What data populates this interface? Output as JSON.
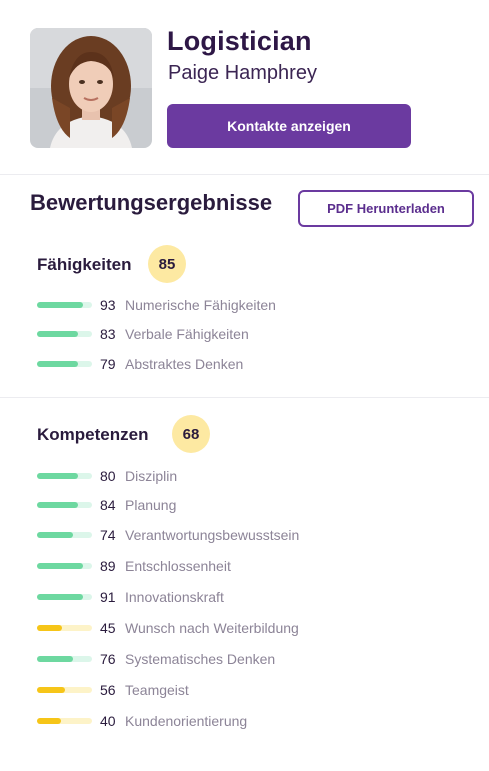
{
  "profile": {
    "job_title": "Logistician",
    "name": "Paige Hamphrey",
    "contacts_button": "Kontakte anzeigen"
  },
  "results": {
    "title": "Bewertungsergebnisse",
    "pdf_button": "PDF Herunterladen"
  },
  "colors": {
    "accent": "#6b3aa0",
    "badge": "#fde9a2",
    "high": "#6dd8a0",
    "low": "#f6c518"
  },
  "groups": [
    {
      "title": "Fähigkeiten",
      "score": "85",
      "items": [
        {
          "score": "93",
          "label": "Numerische Fähigkeiten",
          "level": "high"
        },
        {
          "score": "83",
          "label": "Verbale Fähigkeiten",
          "level": "high"
        },
        {
          "score": "79",
          "label": "Abstraktes Denken",
          "level": "high"
        }
      ]
    },
    {
      "title": "Kompetenzen",
      "score": "68",
      "items": [
        {
          "score": "80",
          "label": "Disziplin",
          "level": "high"
        },
        {
          "score": "84",
          "label": "Planung",
          "level": "high"
        },
        {
          "score": "74",
          "label": "Verantwortungsbewusstsein",
          "level": "high"
        },
        {
          "score": "89",
          "label": "Entschlossenheit",
          "level": "high"
        },
        {
          "score": "91",
          "label": "Innovationskraft",
          "level": "high"
        },
        {
          "score": "45",
          "label": "Wunsch nach Weiterbildung",
          "level": "low"
        },
        {
          "score": "76",
          "label": "Systematisches Denken",
          "level": "high"
        },
        {
          "score": "56",
          "label": "Teamgeist",
          "level": "low"
        },
        {
          "score": "40",
          "label": "Kundenorientierung",
          "level": "low"
        }
      ]
    }
  ]
}
